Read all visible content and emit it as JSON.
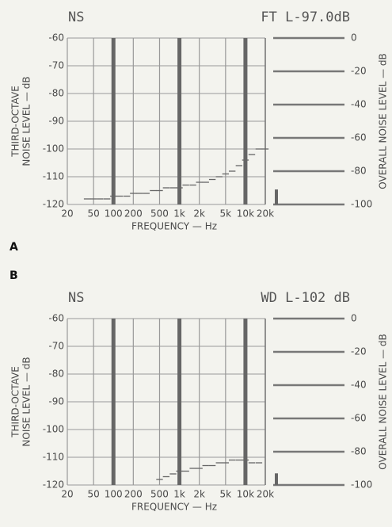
{
  "chart_data": [
    {
      "type": "step",
      "panel_label": "A",
      "title": "NS",
      "subtitle": "FT L-97.0dB",
      "ylabel": [
        "THIRD-OCTAVE",
        "NOISE LEVEL — dB"
      ],
      "y2label": "OVERALL NOISE LEVEL — dB",
      "xlabel": "FREQUENCY — Hz",
      "log_x": true,
      "grid": true,
      "color": "#666",
      "xlim": [
        20,
        20000
      ],
      "xticks": [
        20,
        50,
        100,
        200,
        500,
        {
          "value": 1000,
          "label": "1k"
        },
        {
          "value": 2000,
          "label": "2k"
        },
        {
          "value": 5000,
          "label": "5k"
        },
        {
          "value": 10000,
          "label": "10k"
        },
        {
          "value": 20000,
          "label": "20k"
        }
      ],
      "ylim": [
        -120,
        -60
      ],
      "yticks": [
        -60,
        -70,
        -80,
        -90,
        -100,
        -110,
        -120
      ],
      "y2lim": [
        -100,
        0
      ],
      "y2ticks": [
        0,
        -20,
        -40,
        -60,
        -80,
        -100
      ],
      "x": [
        40,
        50,
        63,
        80,
        100,
        125,
        160,
        200,
        250,
        315,
        400,
        500,
        630,
        800,
        1000,
        1250,
        1600,
        2000,
        2500,
        3150,
        4000,
        5000,
        6300,
        8000,
        10000,
        12500,
        16000,
        20000
      ],
      "values": [
        -118,
        -118,
        -118,
        -118,
        -117,
        -117,
        -117,
        -116,
        -116,
        -116,
        -115,
        -115,
        -114,
        -114,
        -114,
        -113,
        -113,
        -112,
        -112,
        -111,
        -110,
        -109,
        -108,
        -106,
        -104,
        -102,
        -100,
        -100
      ],
      "overall_level": -91
    },
    {
      "type": "step",
      "panel_label": "B",
      "title": "NS",
      "subtitle": "WD L-102 dB",
      "ylabel": [
        "THIRD-OCTAVE",
        "NOISE LEVEL — dB"
      ],
      "y2label": "OVERALL NOISE LEVEL — dB",
      "xlabel": "FREQUENCY — Hz",
      "log_x": true,
      "grid": true,
      "color": "#666",
      "xlim": [
        20,
        20000
      ],
      "xticks": [
        20,
        50,
        100,
        200,
        500,
        {
          "value": 1000,
          "label": "1k"
        },
        {
          "value": 2000,
          "label": "2k"
        },
        {
          "value": 5000,
          "label": "5k"
        },
        {
          "value": 10000,
          "label": "10k"
        },
        {
          "value": 20000,
          "label": "20k"
        }
      ],
      "ylim": [
        -120,
        -60
      ],
      "yticks": [
        -60,
        -70,
        -80,
        -90,
        -100,
        -110,
        -120
      ],
      "y2lim": [
        -100,
        0
      ],
      "y2ticks": [
        0,
        -20,
        -40,
        -60,
        -80,
        -100
      ],
      "x": [
        500,
        630,
        800,
        1000,
        1250,
        1600,
        2000,
        2500,
        3150,
        4000,
        5000,
        6300,
        8000,
        10000,
        12500,
        16000
      ],
      "values": [
        -118,
        -117,
        -116,
        -115,
        -115,
        -114,
        -114,
        -113,
        -113,
        -112,
        -112,
        -111,
        -111,
        -111,
        -112,
        -112
      ],
      "overall_level": -93
    }
  ]
}
